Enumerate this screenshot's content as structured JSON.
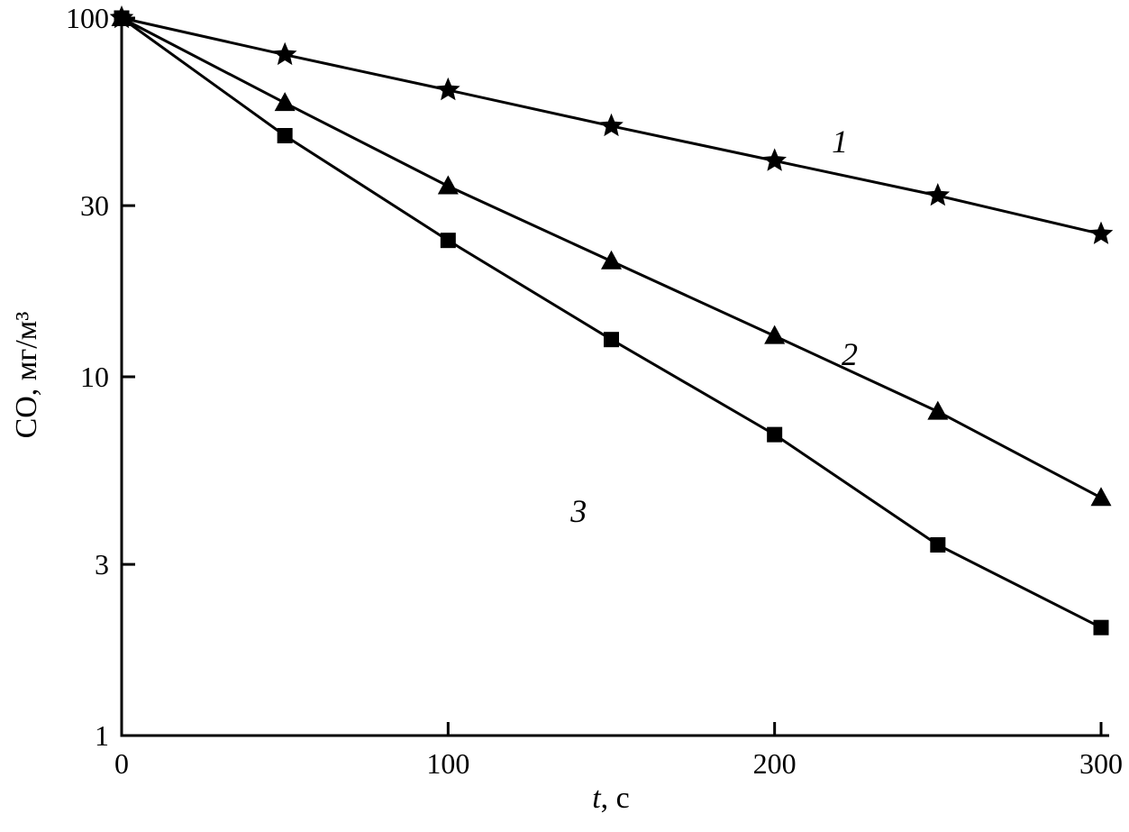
{
  "chart_data": {
    "type": "line",
    "title": "",
    "xlabel": {
      "italic": "t",
      "rest": ", с"
    },
    "ylabel": "CO, мг/м³",
    "yscale": "log",
    "grid": false,
    "xlim": [
      0,
      300
    ],
    "ylim": [
      1,
      100
    ],
    "xticks": [
      0,
      100,
      200,
      300
    ],
    "yticks": [
      100,
      30,
      10,
      3,
      1
    ],
    "x": [
      0,
      50,
      100,
      150,
      200,
      250,
      300
    ],
    "series": [
      {
        "name": "1",
        "marker": "star",
        "values": [
          100,
          79,
          63,
          50,
          40,
          32,
          25
        ],
        "label_x": 220,
        "label_y": 45
      },
      {
        "name": "2",
        "marker": "triangle",
        "values": [
          100,
          58,
          34,
          21,
          13,
          8,
          4.6
        ],
        "label_x": 223,
        "label_y": 11.5
      },
      {
        "name": "3",
        "marker": "square",
        "values": [
          100,
          47,
          24,
          12.7,
          6.9,
          3.4,
          2.0
        ],
        "label_x": 140,
        "label_y": 4.2
      }
    ],
    "colors": {
      "line": "#000000",
      "marker": "#000000",
      "background": "#ffffff"
    }
  }
}
